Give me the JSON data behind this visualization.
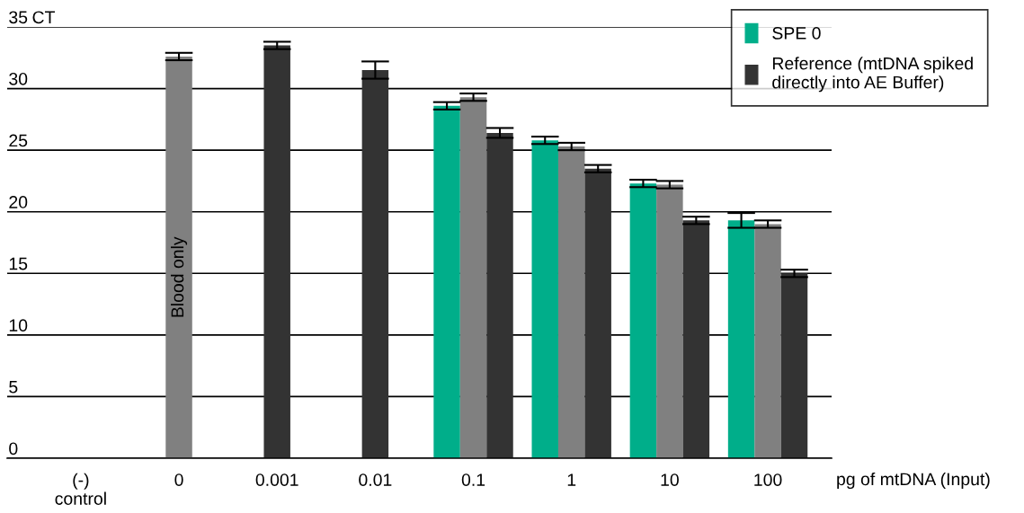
{
  "chart_data": {
    "type": "bar",
    "categories": [
      "(-)\ncontrol",
      "0",
      "0.001",
      "0.01",
      "0.1",
      "1",
      "10",
      "100"
    ],
    "xlabel": "pg of mtDNA (Input)",
    "ylabel": "CT",
    "series": [
      {
        "name": "SPE 0",
        "color": "#00ae8a",
        "values": [
          null,
          null,
          null,
          null,
          28.6,
          25.8,
          22.3,
          19.3
        ],
        "errors": [
          null,
          null,
          null,
          null,
          0.3,
          0.3,
          0.3,
          0.6
        ]
      },
      {
        "color": "#808080",
        "values": [
          null,
          32.6,
          null,
          null,
          29.3,
          25.3,
          22.2,
          19.0
        ],
        "errors": [
          null,
          0.3,
          null,
          null,
          0.3,
          0.3,
          0.3,
          0.3
        ]
      },
      {
        "name": "Reference (mtDNA spiked\ndirectly into AE Buffer)",
        "color": "#333333",
        "values": [
          null,
          null,
          33.5,
          31.5,
          26.4,
          23.5,
          19.3,
          15.0
        ],
        "errors": [
          null,
          null,
          0.3,
          0.7,
          0.4,
          0.3,
          0.3,
          0.3
        ]
      }
    ],
    "annotations": [
      "Blood only"
    ],
    "ylim": [
      0,
      35
    ],
    "yticks": [
      0,
      5,
      10,
      15,
      20,
      25,
      30,
      35
    ],
    "grid": "y",
    "legend": "top right"
  }
}
